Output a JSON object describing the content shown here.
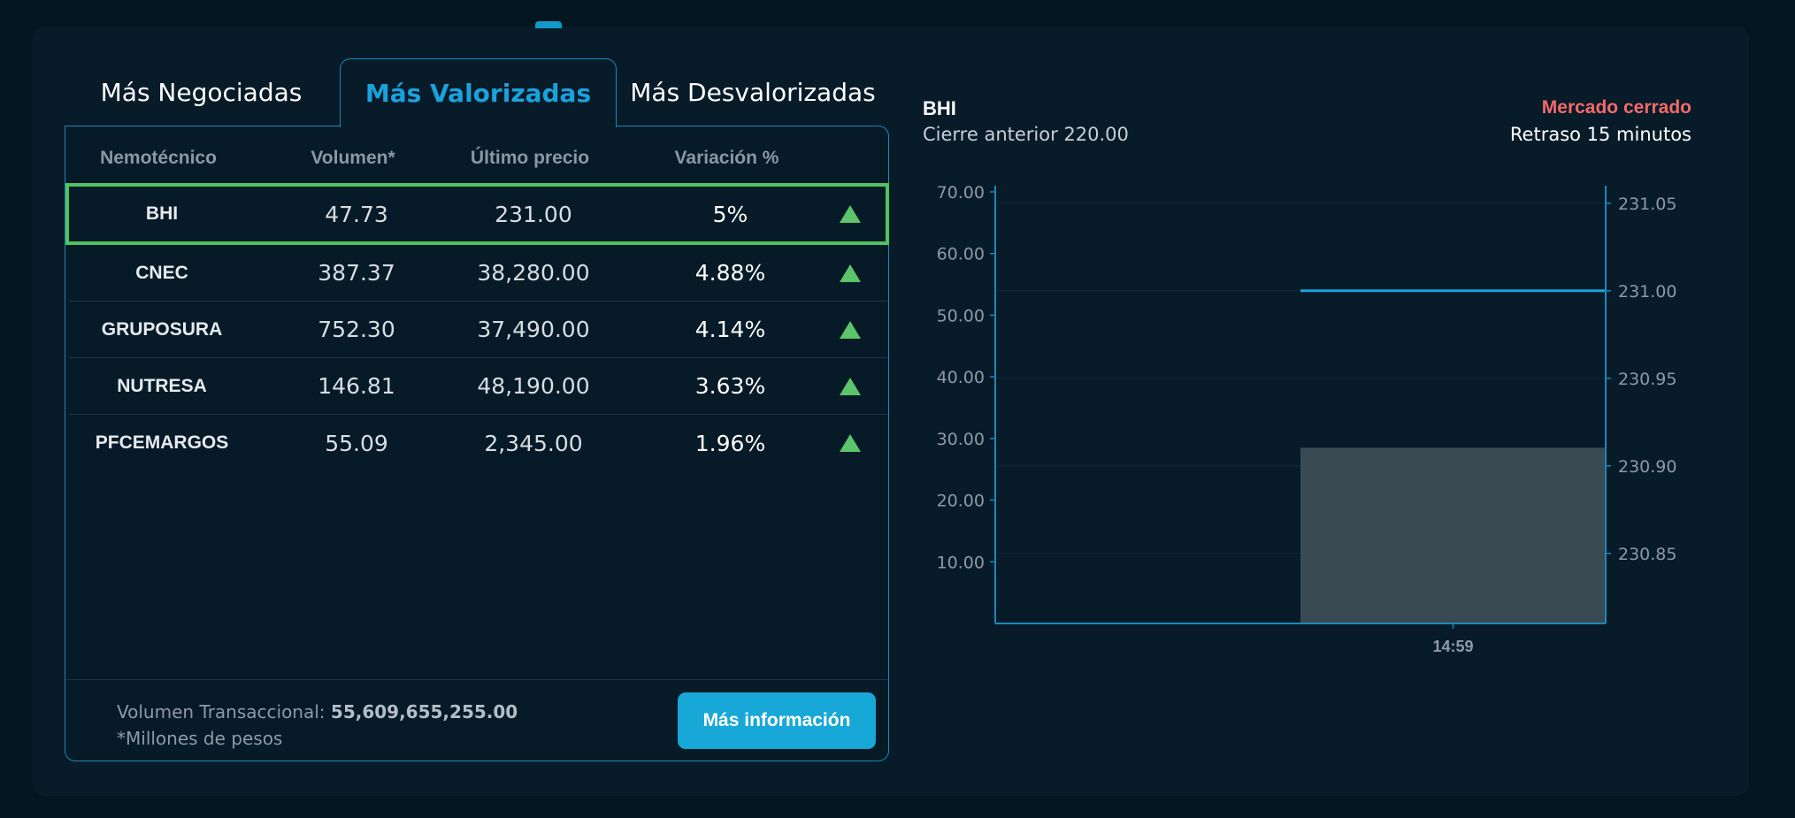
{
  "tabs": [
    {
      "label": "Más Negociadas"
    },
    {
      "label": "Más Valorizadas"
    },
    {
      "label": "Más Desvalorizadas"
    }
  ],
  "table": {
    "headers": [
      "Nemotécnico",
      "Volumen*",
      "Último precio",
      "Variación %"
    ],
    "rows": [
      {
        "symbol": "BHI",
        "volume": "47.73",
        "price": "231.00",
        "variation": "5%",
        "trend_icon": "triangle-up-icon"
      },
      {
        "symbol": "CNEC",
        "volume": "387.37",
        "price": "38,280.00",
        "variation": "4.88%",
        "trend_icon": "triangle-up-icon"
      },
      {
        "symbol": "GRUPOSURA",
        "volume": "752.30",
        "price": "37,490.00",
        "variation": "4.14%",
        "trend_icon": "triangle-up-icon"
      },
      {
        "symbol": "NUTRESA",
        "volume": "146.81",
        "price": "48,190.00",
        "variation": "3.63%",
        "trend_icon": "triangle-up-icon"
      },
      {
        "symbol": "PFCEMARGOS",
        "volume": "55.09",
        "price": "2,345.00",
        "variation": "1.96%",
        "trend_icon": "triangle-up-icon"
      }
    ],
    "selected_row": 0
  },
  "footer": {
    "volume_label": "Volumen Transaccional:",
    "volume_value": "55,609,655,255.00",
    "unit_note": "*Millones de pesos",
    "more_button": "Más información"
  },
  "chart_header": {
    "symbol": "BHI",
    "previous_close": "Cierre anterior 220.00",
    "market_status": "Mercado cerrado",
    "delay": "Retraso 15 minutos"
  },
  "colors": {
    "background": "#031620",
    "panel": "#071b29",
    "accent": "#18a8d8",
    "up": "#5cc46a",
    "selected_border": "#4fc460",
    "closed": "#f46a6a",
    "volume_bar": "#3a4a53",
    "price_line": "#1aa2dd"
  },
  "chart_data": {
    "type": "bar",
    "x": [
      "14:59"
    ],
    "x_range_start_fraction": 0.5,
    "left_axis": {
      "ticks": [
        "70.00",
        "60.00",
        "50.00",
        "40.00",
        "30.00",
        "20.00",
        "10.00"
      ],
      "range": [
        0,
        71
      ]
    },
    "right_axis": {
      "ticks": [
        "231.05",
        "231.00",
        "230.95",
        "230.90",
        "230.85"
      ],
      "range": [
        230.81,
        231.06
      ]
    },
    "series": [
      {
        "kind": "bar",
        "axis": "left",
        "values": [
          28.5
        ]
      },
      {
        "kind": "line",
        "axis": "right",
        "values": [
          231.0
        ]
      }
    ]
  }
}
